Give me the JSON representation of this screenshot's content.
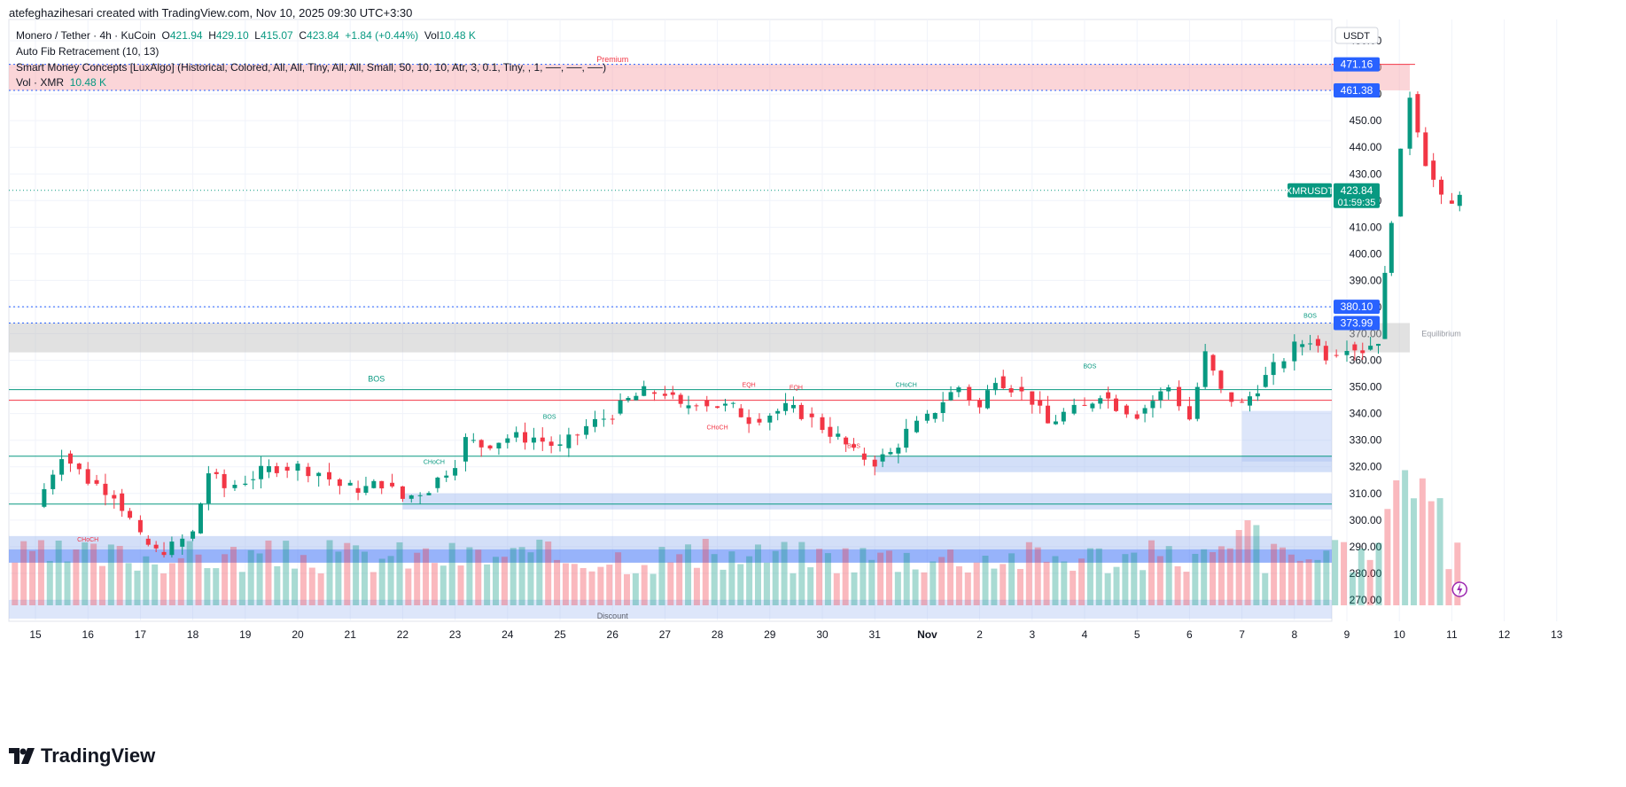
{
  "header": {
    "author_line": "atefeghazihesari created with TradingView.com, Nov 10, 2025 09:30 UTC+3:30"
  },
  "legend": {
    "symbol": "Monero / Tether · 4h · KuCoin",
    "o_label": "O",
    "o_value": "421.94",
    "h_label": "H",
    "h_value": "429.10",
    "l_label": "L",
    "l_value": "415.07",
    "c_label": "C",
    "c_value": "423.84",
    "change": "+1.84 (+0.44%)",
    "vol_label": "Vol",
    "vol_value": "10.48 K",
    "indicator1": "Auto Fib Retracement (10, 13)",
    "indicator2": "Smart Money Concepts [LuxAlgo] (Historical, Colored, All, All, Tiny, All, All, Small, 50, 10, 10, Atr, 3, 0.1, Tiny, , 1, ──, ──, ──)",
    "indicator3_label": "Vol · XMR",
    "indicator3_value": "10.48 K"
  },
  "axis": {
    "currency": "USDT"
  },
  "price_tags": {
    "t471": "471.16",
    "t461": "461.38",
    "t380": "380.10",
    "t373": "373.99",
    "symbol": "XMRUSDT",
    "last": "423.84",
    "countdown": "01:59:35"
  },
  "annotations": {
    "premium": "Premium",
    "equilibrium": "Equilibrium",
    "discount": "Discount",
    "bos": "BOS",
    "choch": "CHoCH",
    "eqh": "EQH"
  },
  "brand": {
    "name": "TradingView"
  },
  "colors": {
    "up": "#089981",
    "down": "#f23645",
    "supply": "#f7a1a8",
    "demand": "#9db8f0",
    "equilibrium": "#bdbdbd",
    "accent": "#2962ff"
  },
  "chart_data": {
    "type": "candlestick",
    "title": "Monero / Tether · 4h · KuCoin",
    "y_ticks": [
      270,
      280,
      290,
      300,
      310,
      320,
      330,
      340,
      350,
      360,
      370,
      380,
      390,
      400,
      410,
      420,
      430,
      440,
      450,
      460,
      470,
      480
    ],
    "ylim": [
      262,
      488
    ],
    "x_tick_labels": [
      "15",
      "16",
      "17",
      "18",
      "19",
      "20",
      "21",
      "22",
      "23",
      "24",
      "25",
      "26",
      "27",
      "28",
      "29",
      "30",
      "31",
      "Nov",
      "2",
      "3",
      "4",
      "5",
      "6",
      "7",
      "8",
      "9",
      "10",
      "11",
      "12",
      "13"
    ],
    "grid": true,
    "close_path": [
      [
        15,
        305
      ],
      [
        15.5,
        325
      ],
      [
        16,
        315
      ],
      [
        16.5,
        310
      ],
      [
        16.8,
        300
      ],
      [
        17.0,
        293
      ],
      [
        17.3,
        288
      ],
      [
        17.6,
        290
      ],
      [
        18.0,
        295
      ],
      [
        18.3,
        318
      ],
      [
        18.6,
        312
      ],
      [
        19.0,
        315
      ],
      [
        19.3,
        318
      ],
      [
        19.6,
        320
      ],
      [
        20.0,
        320
      ],
      [
        20.4,
        318
      ],
      [
        20.8,
        313
      ],
      [
        21.0,
        312
      ],
      [
        21.3,
        312
      ],
      [
        21.6,
        314
      ],
      [
        22.0,
        308
      ],
      [
        22.5,
        312
      ],
      [
        23.0,
        322
      ],
      [
        23.2,
        330
      ],
      [
        23.5,
        328
      ],
      [
        24.0,
        331
      ],
      [
        24.5,
        331
      ],
      [
        25.0,
        327
      ],
      [
        25.5,
        335
      ],
      [
        26.0,
        340
      ],
      [
        26.3,
        345
      ],
      [
        26.6,
        348
      ],
      [
        27.0,
        348
      ],
      [
        27.3,
        342
      ],
      [
        27.6,
        345
      ],
      [
        28.0,
        343
      ],
      [
        28.3,
        342
      ],
      [
        28.6,
        338
      ],
      [
        29.0,
        340
      ],
      [
        29.3,
        342
      ],
      [
        29.6,
        340
      ],
      [
        30.0,
        335
      ],
      [
        30.3,
        331
      ],
      [
        30.6,
        325
      ],
      [
        31.0,
        322
      ],
      [
        31.3,
        325
      ],
      [
        31.6,
        333
      ],
      [
        32.0,
        338
      ],
      [
        32.3,
        345
      ],
      [
        32.6,
        350
      ],
      [
        33.0,
        342
      ],
      [
        33.3,
        354
      ],
      [
        33.6,
        350
      ],
      [
        34.0,
        345
      ],
      [
        34.3,
        336
      ],
      [
        34.6,
        340
      ],
      [
        35.0,
        342
      ],
      [
        35.3,
        348
      ],
      [
        35.6,
        343
      ],
      [
        36.0,
        340
      ],
      [
        36.3,
        345
      ],
      [
        36.6,
        350
      ],
      [
        37.0,
        338
      ],
      [
        37.3,
        362
      ],
      [
        37.6,
        348
      ],
      [
        38.0,
        343
      ],
      [
        38.3,
        350
      ],
      [
        38.6,
        357
      ],
      [
        39.0,
        365
      ],
      [
        39.3,
        368
      ],
      [
        39.6,
        362
      ],
      [
        40.0,
        366
      ],
      [
        40.3,
        364
      ],
      [
        40.6,
        368
      ],
      [
        40.85,
        414
      ],
      [
        41.2,
        460
      ],
      [
        41.5,
        435
      ],
      [
        41.8,
        420
      ],
      [
        42.0,
        418
      ],
      [
        42.15,
        424
      ]
    ],
    "volume_note": "relative volume bars, peak near Nov 9–10"
  }
}
